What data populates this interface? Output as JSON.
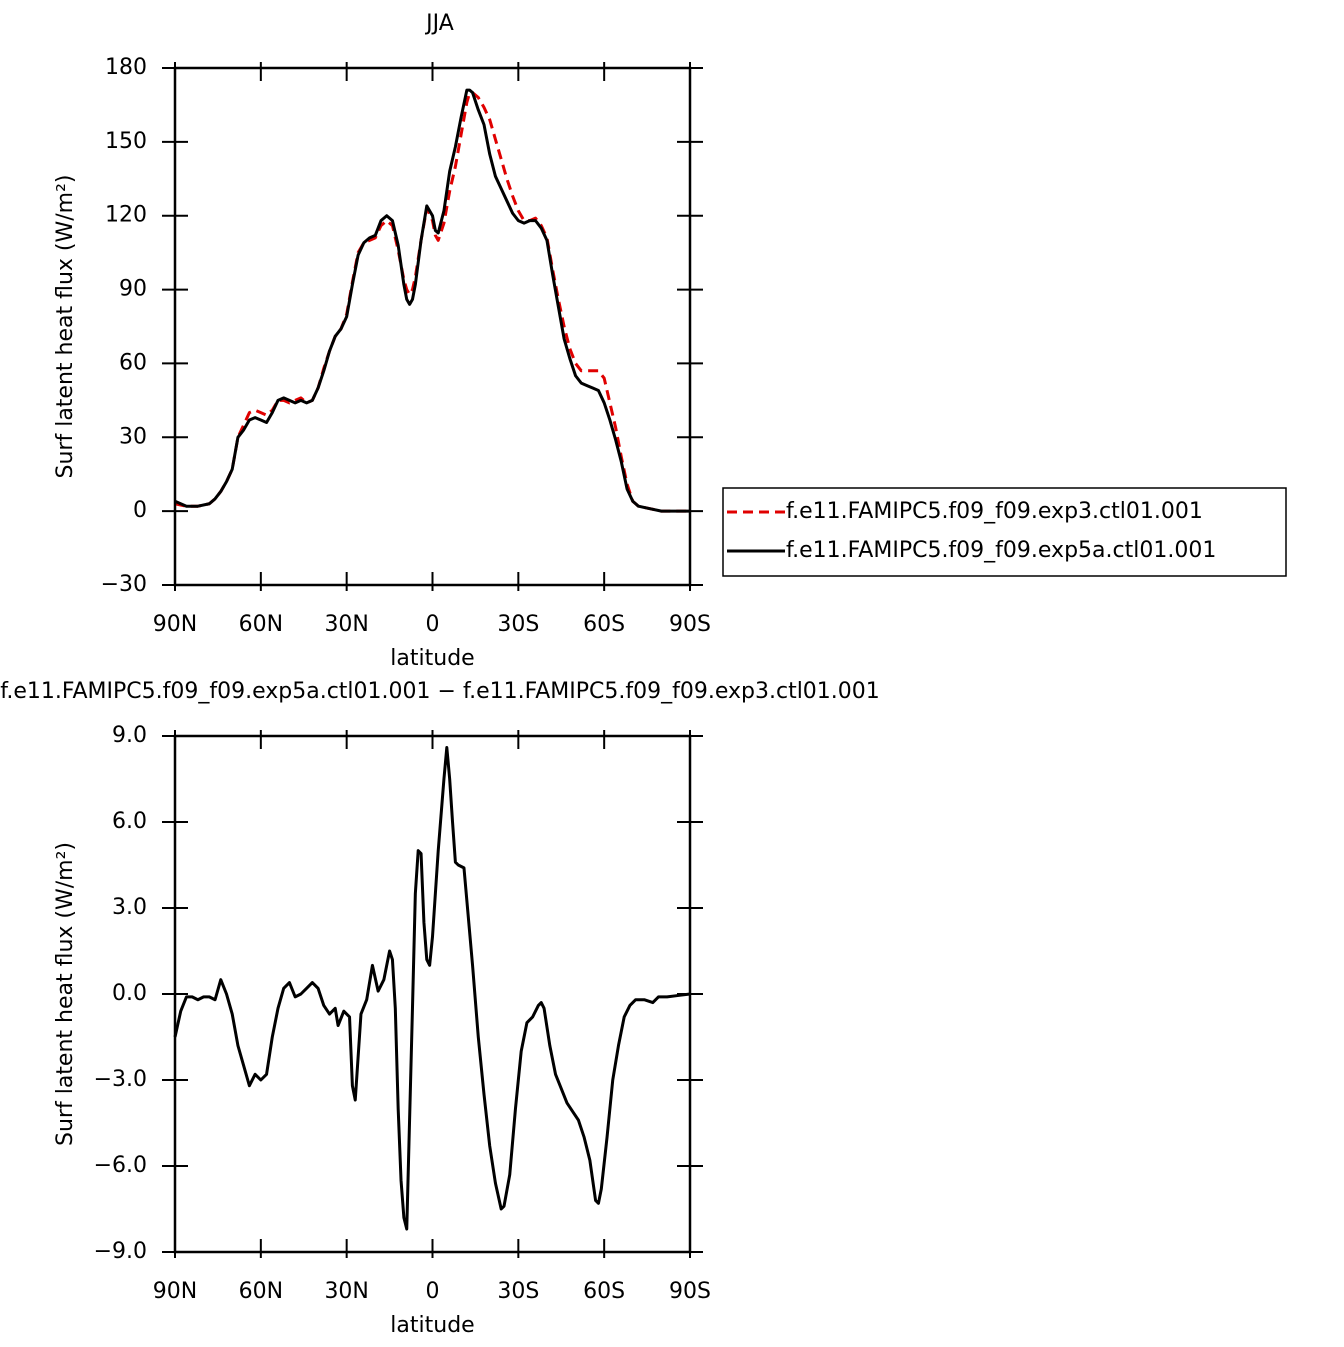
{
  "chart_data": [
    {
      "type": "line",
      "title": "JJA",
      "xlabel": "latitude",
      "ylabel": "Surf latent heat flux (W/m²)",
      "x": [
        90,
        86,
        82,
        78,
        76,
        74,
        72,
        70,
        68,
        66,
        64,
        62,
        60,
        58,
        56,
        54,
        52,
        50,
        48,
        46,
        44,
        42,
        40,
        38,
        36,
        34,
        32,
        30,
        28,
        26,
        24,
        22,
        20,
        18,
        16,
        14,
        12,
        10,
        9,
        8,
        7,
        6,
        4,
        2,
        0,
        -1,
        -2,
        -4,
        -6,
        -8,
        -10,
        -12,
        -13,
        -14,
        -16,
        -18,
        -20,
        -22,
        -24,
        -26,
        -28,
        -30,
        -32,
        -34,
        -36,
        -38,
        -40,
        -42,
        -44,
        -46,
        -48,
        -50,
        -52,
        -54,
        -56,
        -58,
        -60,
        -62,
        -64,
        -66,
        -68,
        -70,
        -72,
        -76,
        -80,
        -84,
        -90
      ],
      "series": [
        {
          "name": "f.e11.FAMIPC5.f09_f09.exp3.ctl01.001",
          "color": "#e00000",
          "line_style": "dashed",
          "values": [
            3,
            2,
            2,
            3,
            5,
            8,
            12,
            17,
            30,
            35,
            40,
            41,
            40,
            39,
            41,
            45,
            45,
            44,
            45,
            46,
            44,
            45,
            50,
            58,
            65,
            71,
            74,
            80,
            93,
            105,
            109,
            110,
            111,
            116,
            118,
            116,
            106,
            94,
            90,
            88,
            90,
            95,
            110,
            123,
            118,
            112,
            110,
            117,
            130,
            140,
            153,
            166,
            170,
            170,
            168,
            164,
            159,
            151,
            143,
            135,
            128,
            122,
            118,
            118,
            119,
            116,
            111,
            98,
            86,
            75,
            66,
            60,
            57,
            57,
            57,
            57,
            54,
            44,
            34,
            22,
            11,
            4,
            2,
            1,
            0,
            0,
            0
          ]
        },
        {
          "name": "f.e11.FAMIPC5.f09_f09.exp5a.ctl01.001",
          "color": "#000000",
          "line_style": "solid",
          "values": [
            4,
            2,
            2,
            3,
            5,
            8,
            12,
            17,
            30,
            33,
            37,
            38,
            37,
            36,
            40,
            45,
            46,
            45,
            44,
            45,
            44,
            45,
            50,
            57,
            65,
            71,
            74,
            79,
            92,
            104,
            109,
            111,
            112,
            118,
            120,
            118,
            108,
            92,
            86,
            84,
            86,
            92,
            110,
            124,
            120,
            114,
            113,
            122,
            138,
            148,
            160,
            171,
            171,
            170,
            163,
            157,
            145,
            136,
            131,
            126,
            121,
            118,
            117,
            118,
            118,
            115,
            110,
            96,
            83,
            70,
            62,
            55,
            52,
            51,
            50,
            49,
            44,
            37,
            29,
            20,
            9,
            4,
            2,
            1,
            0,
            0,
            0
          ]
        }
      ],
      "xlim": [
        90,
        -90
      ],
      "xticks": [
        {
          "value": 90,
          "label": "90N"
        },
        {
          "value": 60,
          "label": "60N"
        },
        {
          "value": 30,
          "label": "30N"
        },
        0,
        {
          "value": -30,
          "label": "30S"
        },
        {
          "value": -60,
          "label": "60S"
        },
        {
          "value": -90,
          "label": "90S"
        }
      ],
      "ylim": [
        -30,
        180
      ],
      "yticks": [
        {
          "value": -30,
          "label": "−30"
        },
        0,
        30,
        60,
        90,
        120,
        150,
        180
      ],
      "grid": false,
      "legend": "right"
    },
    {
      "type": "line",
      "title": "f.e11.FAMIPC5.f09_f09.exp5a.ctl01.001 − f.e11.FAMIPC5.f09_f09.exp3.ctl01.001",
      "xlabel": "latitude",
      "ylabel": "Surf latent heat flux (W/m²)",
      "x": [
        90,
        88,
        86,
        84,
        82,
        80,
        78,
        76,
        74,
        72,
        70,
        68,
        66,
        64,
        62,
        60,
        58,
        56,
        54,
        52,
        50,
        48,
        46,
        44,
        42,
        40,
        38,
        36,
        34,
        33,
        31,
        29,
        28,
        27,
        25,
        23,
        21,
        19,
        17,
        15,
        14,
        13,
        12,
        11,
        10,
        9,
        7,
        6,
        5,
        4,
        3,
        2,
        1,
        0,
        -2,
        -4,
        -5,
        -6,
        -7,
        -8,
        -9,
        -11,
        -14,
        -16,
        -18,
        -20,
        -22,
        -24,
        -25,
        -27,
        -29,
        -31,
        -33,
        -35,
        -37,
        -38,
        -39,
        -41,
        -43,
        -45,
        -47,
        -49,
        -51,
        -53,
        -55,
        -57,
        -58,
        -59,
        -61,
        -63,
        -65,
        -67,
        -69,
        -71,
        -74,
        -77,
        -79,
        -82,
        -86,
        -90
      ],
      "series": [
        {
          "color": "#000000",
          "line_style": "solid",
          "values": [
            -1.5,
            -0.6,
            -0.1,
            -0.1,
            -0.2,
            -0.1,
            -0.1,
            -0.2,
            0.5,
            0.0,
            -0.7,
            -1.8,
            -2.5,
            -3.2,
            -2.8,
            -3.0,
            -2.8,
            -1.5,
            -0.5,
            0.2,
            0.4,
            -0.1,
            0.0,
            0.2,
            0.4,
            0.2,
            -0.4,
            -0.7,
            -0.5,
            -1.1,
            -0.6,
            -0.8,
            -3.2,
            -3.7,
            -0.7,
            -0.2,
            1.0,
            0.1,
            0.5,
            1.5,
            1.2,
            -0.5,
            -4.0,
            -6.5,
            -7.8,
            -8.2,
            -0.5,
            3.5,
            5.0,
            4.9,
            2.5,
            1.2,
            1.0,
            2.0,
            5.0,
            7.5,
            8.6,
            7.5,
            6.0,
            4.6,
            4.5,
            4.4,
            1.0,
            -1.5,
            -3.5,
            -5.3,
            -6.6,
            -7.5,
            -7.4,
            -6.3,
            -4.0,
            -2.0,
            -1.0,
            -0.8,
            -0.4,
            -0.3,
            -0.5,
            -1.8,
            -2.8,
            -3.3,
            -3.8,
            -4.1,
            -4.4,
            -5.0,
            -5.8,
            -7.2,
            -7.3,
            -6.8,
            -5.0,
            -3.0,
            -1.8,
            -0.8,
            -0.4,
            -0.2,
            -0.2,
            -0.3,
            -0.1,
            -0.1,
            -0.05,
            0.0
          ]
        }
      ],
      "xlim": [
        90,
        -90
      ],
      "xticks": [
        {
          "value": 90,
          "label": "90N"
        },
        {
          "value": 60,
          "label": "60N"
        },
        {
          "value": 30,
          "label": "30N"
        },
        0,
        {
          "value": -30,
          "label": "30S"
        },
        {
          "value": -60,
          "label": "60S"
        },
        {
          "value": -90,
          "label": "90S"
        }
      ],
      "ylim": [
        -9,
        9
      ],
      "yticks": [
        {
          "value": -9,
          "label": "−9.0"
        },
        {
          "value": -6,
          "label": "−6.0"
        },
        {
          "value": -3,
          "label": "−3.0"
        },
        {
          "value": 0,
          "label": "0.0"
        },
        {
          "value": 3,
          "label": "3.0"
        },
        {
          "value": 6,
          "label": "6.0"
        },
        {
          "value": 9,
          "label": "9.0"
        }
      ],
      "grid": false
    }
  ]
}
